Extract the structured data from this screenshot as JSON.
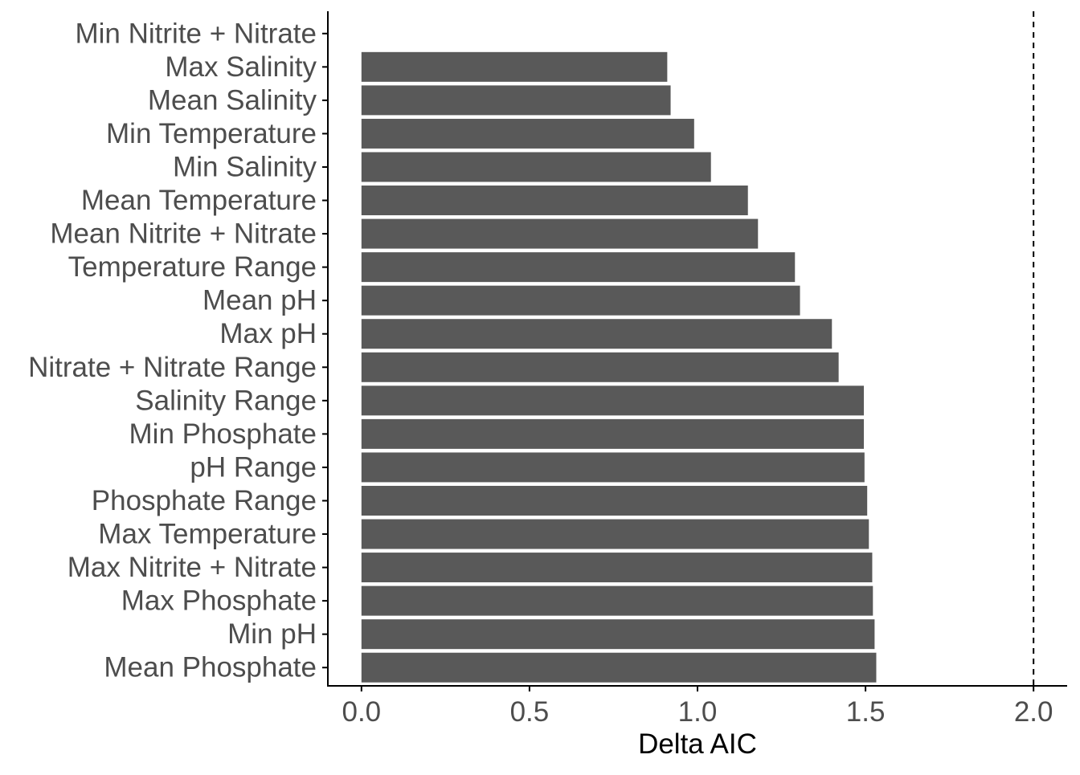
{
  "chart_data": {
    "type": "bar",
    "orientation": "horizontal",
    "title": "",
    "xlabel": "Delta AIC",
    "ylabel": "",
    "xlim": [
      -0.1,
      2.1
    ],
    "x_ticks": [
      {
        "value": 0.0,
        "label": "0.0"
      },
      {
        "value": 0.5,
        "label": "0.5"
      },
      {
        "value": 1.0,
        "label": "1.0"
      },
      {
        "value": 1.5,
        "label": "1.5"
      },
      {
        "value": 2.0,
        "label": "2.0"
      }
    ],
    "reference_line": {
      "value": 2.0,
      "style": "dashed"
    },
    "grid": false,
    "bar_color": "#595959",
    "categories": [
      "Min Nitrite + Nitrate",
      "Max Salinity",
      "Mean Salinity",
      "Min Temperature",
      "Min Salinity",
      "Mean Temperature",
      "Mean Nitrite + Nitrate",
      "Temperature Range",
      "Mean pH",
      "Max pH",
      "Nitrate + Nitrate Range",
      "Salinity Range",
      "Min Phosphate",
      "pH Range",
      "Phosphate Range",
      "Max Temperature",
      "Max Nitrite + Nitrate",
      "Max Phosphate",
      "Min pH",
      "Mean Phosphate"
    ],
    "values": [
      0.0,
      0.91,
      0.92,
      0.99,
      1.04,
      1.15,
      1.18,
      1.29,
      1.305,
      1.4,
      1.42,
      1.495,
      1.495,
      1.497,
      1.505,
      1.51,
      1.52,
      1.522,
      1.527,
      1.532
    ]
  }
}
